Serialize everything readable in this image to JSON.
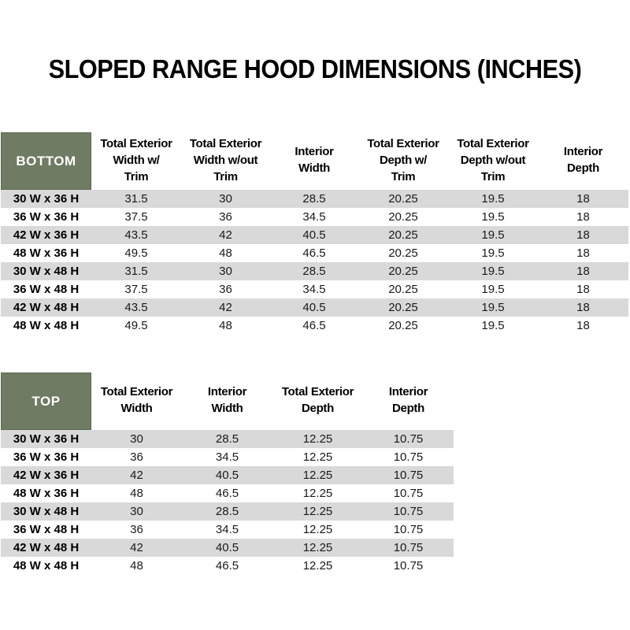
{
  "page": {
    "title": "SLOPED RANGE HOOD DIMENSIONS (INCHES)"
  },
  "colors": {
    "header_cell_bg": "#6F7B62",
    "header_cell_border": "#5E6A52",
    "header_cell_text": "#FFFFFF",
    "stripe": "#D9D9D9",
    "body_text": "#000000"
  },
  "tables": [
    {
      "name": "BOTTOM",
      "columns": [
        "Total Exterior\nWidth w/\nTrim",
        "Total Exterior\nWidth w/out\nTrim",
        "Interior\nWidth",
        "Total Exterior\nDepth w/\nTrim",
        "Total Exterior\nDepth w/out\nTrim",
        "Interior\nDepth"
      ],
      "rows": [
        {
          "label": "30 W x 36 H",
          "values": [
            "31.5",
            "30",
            "28.5",
            "20.25",
            "19.5",
            "18"
          ]
        },
        {
          "label": "36 W x 36 H",
          "values": [
            "37.5",
            "36",
            "34.5",
            "20.25",
            "19.5",
            "18"
          ]
        },
        {
          "label": "42 W x 36 H",
          "values": [
            "43.5",
            "42",
            "40.5",
            "20.25",
            "19.5",
            "18"
          ]
        },
        {
          "label": "48 W x 36 H",
          "values": [
            "49.5",
            "48",
            "46.5",
            "20.25",
            "19.5",
            "18"
          ]
        },
        {
          "label": "30 W x 48 H",
          "values": [
            "31.5",
            "30",
            "28.5",
            "20.25",
            "19.5",
            "18"
          ]
        },
        {
          "label": "36 W x 48 H",
          "values": [
            "37.5",
            "36",
            "34.5",
            "20.25",
            "19.5",
            "18"
          ]
        },
        {
          "label": "42 W x 48 H",
          "values": [
            "43.5",
            "42",
            "40.5",
            "20.25",
            "19.5",
            "18"
          ]
        },
        {
          "label": "48 W x 48 H",
          "values": [
            "49.5",
            "48",
            "46.5",
            "20.25",
            "19.5",
            "18"
          ]
        }
      ]
    },
    {
      "name": "TOP",
      "columns": [
        "Total Exterior\nWidth",
        "Interior\nWidth",
        "Total Exterior\nDepth",
        "Interior\nDepth"
      ],
      "rows": [
        {
          "label": "30 W x 36 H",
          "values": [
            "30",
            "28.5",
            "12.25",
            "10.75"
          ]
        },
        {
          "label": "36 W x 36 H",
          "values": [
            "36",
            "34.5",
            "12.25",
            "10.75"
          ]
        },
        {
          "label": "42 W x 36 H",
          "values": [
            "42",
            "40.5",
            "12.25",
            "10.75"
          ]
        },
        {
          "label": "48 W x 36 H",
          "values": [
            "48",
            "46.5",
            "12.25",
            "10.75"
          ]
        },
        {
          "label": "30 W x 48 H",
          "values": [
            "30",
            "28.5",
            "12.25",
            "10.75"
          ]
        },
        {
          "label": "36 W x 48 H",
          "values": [
            "36",
            "34.5",
            "12.25",
            "10.75"
          ]
        },
        {
          "label": "42 W x 48 H",
          "values": [
            "42",
            "40.5",
            "12.25",
            "10.75"
          ]
        },
        {
          "label": "48 W x 48 H",
          "values": [
            "48",
            "46.5",
            "12.25",
            "10.75"
          ]
        }
      ]
    }
  ]
}
